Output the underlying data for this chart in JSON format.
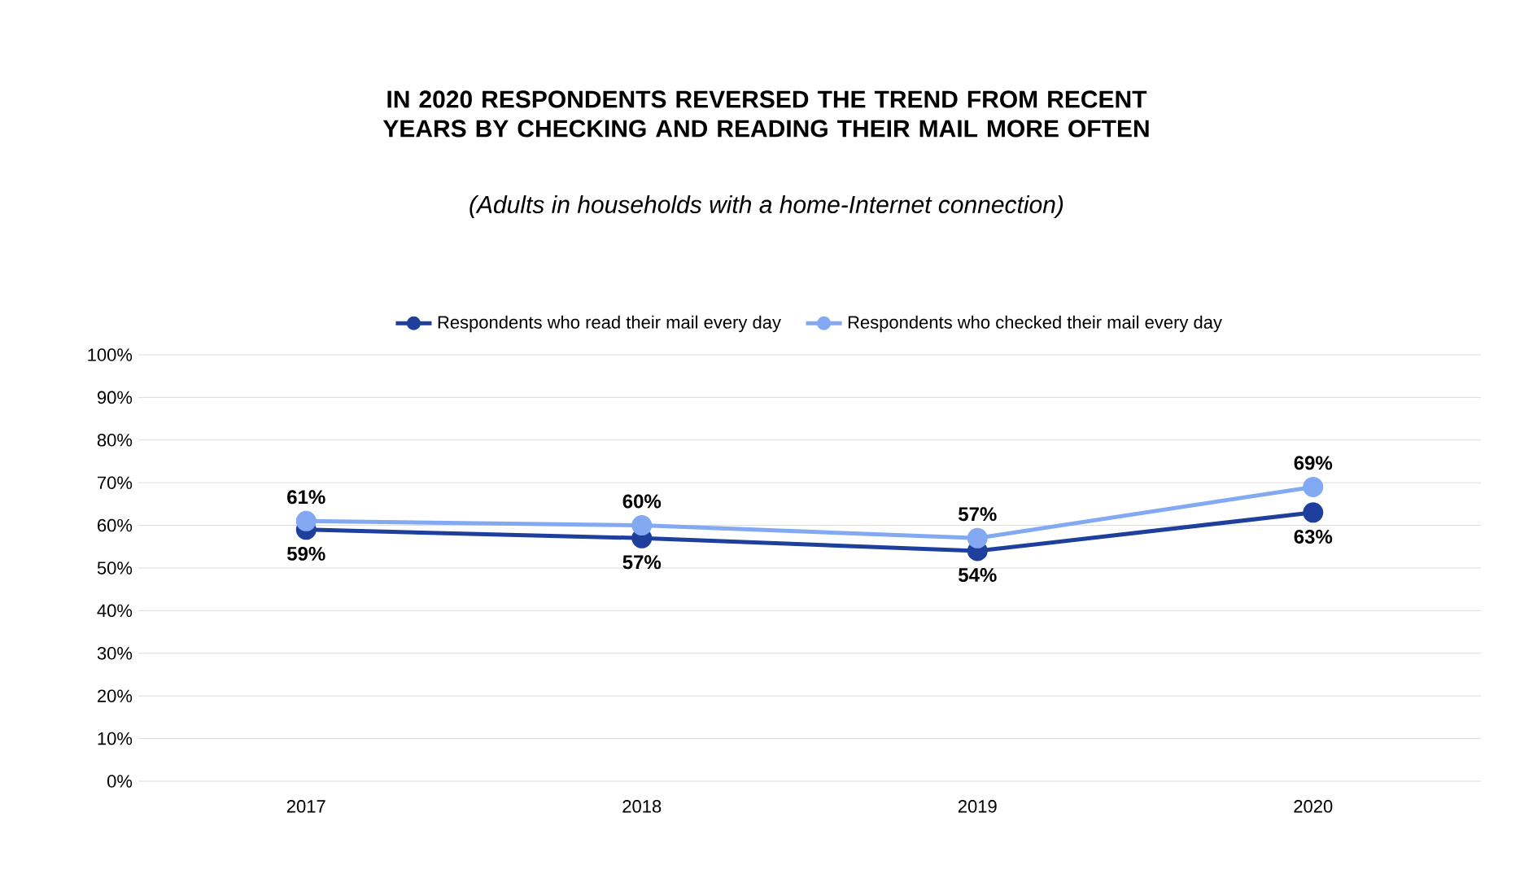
{
  "chart_data": {
    "type": "line",
    "title": "IN 2020 RESPONDENTS REVERSED THE TREND FROM RECENT YEARS BY CHECKING AND READING THEIR MAIL MORE OFTEN",
    "subtitle": "(Adults in households with  a home-Internet connection)",
    "categories": [
      "2017",
      "2018",
      "2019",
      "2020"
    ],
    "series": [
      {
        "name": "Respondents who read their mail every day",
        "color": "#1f3f9c",
        "values": [
          59,
          57,
          54,
          63
        ],
        "value_labels": [
          "59%",
          "57%",
          "54%",
          "63%"
        ]
      },
      {
        "name": "Respondents who checked their mail every day",
        "color": "#82a9f2",
        "values": [
          61,
          60,
          57,
          69
        ],
        "value_labels": [
          "61%",
          "60%",
          "57%",
          "69%"
        ]
      }
    ],
    "ylim": [
      0,
      100
    ],
    "yticks": [
      {
        "value": 0,
        "label": "0%"
      },
      {
        "value": 10,
        "label": "10%"
      },
      {
        "value": 20,
        "label": "20%"
      },
      {
        "value": 30,
        "label": "30%"
      },
      {
        "value": 40,
        "label": "40%"
      },
      {
        "value": 50,
        "label": "50%"
      },
      {
        "value": 60,
        "label": "60%"
      },
      {
        "value": 70,
        "label": "70%"
      },
      {
        "value": 80,
        "label": "80%"
      },
      {
        "value": 90,
        "label": "90%"
      },
      {
        "value": 100,
        "label": "100%"
      }
    ],
    "grid": "y",
    "legend": "top",
    "marker": "circle",
    "line_style": "solid"
  }
}
